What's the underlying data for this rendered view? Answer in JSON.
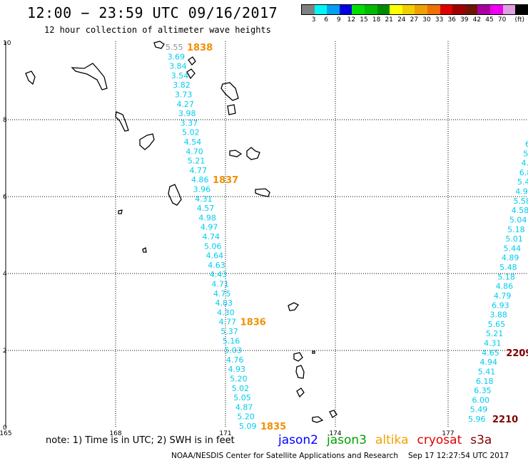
{
  "title": "12:00 − 23:59 UTC 09/16/2017",
  "subtitle": "12 hour collection of altimeter wave heights",
  "legend": {
    "colors": [
      "#808080",
      "#00f5f5",
      "#00a0f0",
      "#0000e0",
      "#00e000",
      "#00bb00",
      "#008c00",
      "#ffff00",
      "#f0d000",
      "#f0a000",
      "#f07000",
      "#e00000",
      "#a00000",
      "#701400",
      "#a800a0",
      "#f000f0",
      "#e0a0e0",
      "#000000"
    ],
    "labels": [
      "3",
      "6",
      "9",
      "12",
      "15",
      "18",
      "21",
      "24",
      "27",
      "30",
      "33",
      "36",
      "39",
      "42",
      "45",
      "70"
    ],
    "unit": "(ft)"
  },
  "map": {
    "lon_ticks": [
      "165",
      "168",
      "171",
      "174",
      "177"
    ],
    "lat_ticks": [
      "0",
      "2",
      "4",
      "6",
      "8",
      "10"
    ],
    "track_left": [
      "5.55",
      "3.69",
      "3.84",
      "3.54",
      "3.82",
      "3.73",
      "4.27",
      "3.98",
      "3.37",
      "5.02",
      "4.54",
      "4.70",
      "5.21",
      "4.77",
      "4.86",
      "3.96",
      "4.31",
      "4.57",
      "4.98",
      "4.97",
      "4.74",
      "5.06",
      "4.64",
      "4.63",
      "4.43",
      "4.71",
      "4.75",
      "4.83",
      "4.30",
      "4.77",
      "5.37",
      "5.16",
      "5.03",
      "4.76",
      "4.93",
      "5.20",
      "5.02",
      "5.05",
      "4.87",
      "5.20",
      "5.09"
    ],
    "time_left": [
      {
        "text": "1838",
        "after": 0
      },
      {
        "text": "1837",
        "after": 14
      },
      {
        "text": "1836",
        "after": 29
      },
      {
        "text": "1835",
        "after": 40
      }
    ],
    "track_right": [
      "6.",
      "5.",
      "4.",
      "6.8",
      "5.4",
      "4.9",
      "5.58",
      "4.58",
      "5.04",
      "5.18",
      "5.01",
      "5.44",
      "4.89",
      "5.48",
      "5.18",
      "4.86",
      "4.79",
      "6.93",
      "3.88",
      "5.65",
      "5.21",
      "4.31",
      "4.65",
      "4.94",
      "5.41",
      "6.18",
      "6.35",
      "6.00",
      "5.49",
      "5.96"
    ],
    "time_right": [
      {
        "text": "2209",
        "after": 22
      },
      {
        "text": "2210",
        "after": 29
      }
    ]
  },
  "footer": {
    "note": "note:  1)  Time is in UTC;  2)  SWH is in feet",
    "satellites": [
      {
        "name": "jason2",
        "color": "#0000ff"
      },
      {
        "name": "jason3",
        "color": "#00a000"
      },
      {
        "name": "altika",
        "color": "#f0a000"
      },
      {
        "name": "cryosat",
        "color": "#e00000"
      },
      {
        "name": "s3a",
        "color": "#800000"
      }
    ],
    "credit": "NOAA/NESDIS Center for Satellite Applications and Research",
    "generated": "Sep 17 12:27:54 UTC 2017"
  },
  "colors": {
    "swh_track": "#00ccee",
    "time_label": "#f09000",
    "time_label_s3a": "#800000"
  }
}
